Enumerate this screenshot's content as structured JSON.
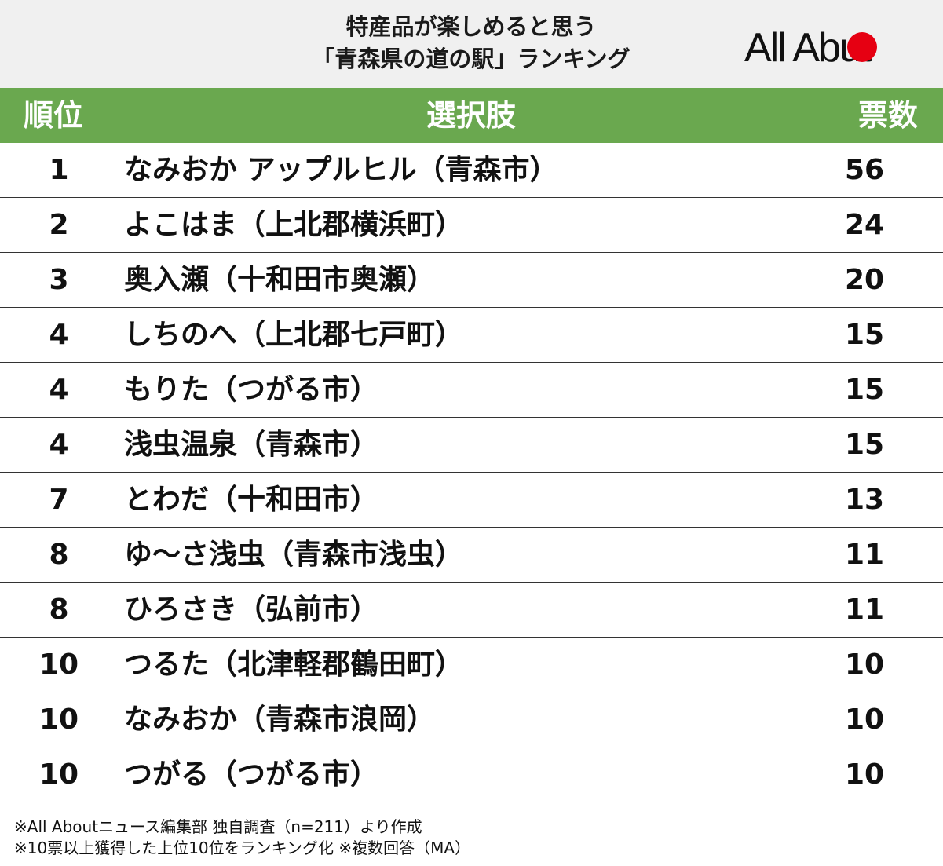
{
  "title": {
    "line1": "特産品が楽しめると思う",
    "line2": "「青森県の道の駅」ランキング"
  },
  "logo": {
    "text_prefix": "All Ab",
    "text_suffix": "ut",
    "dot_color": "#e60012"
  },
  "colors": {
    "header_bg": "#f0f0f0",
    "table_header_bg": "#6aa84f",
    "table_header_text": "#ffffff"
  },
  "table": {
    "headers": {
      "rank": "順位",
      "choice": "選択肢",
      "votes": "票数"
    },
    "rows": [
      {
        "rank": "1",
        "name": "なみおか アップルヒル（青森市）",
        "votes": "56"
      },
      {
        "rank": "2",
        "name": "よこはま（上北郡横浜町）",
        "votes": "24"
      },
      {
        "rank": "3",
        "name": "奥入瀬（十和田市奥瀬）",
        "votes": "20"
      },
      {
        "rank": "4",
        "name": "しちのへ（上北郡七戸町）",
        "votes": "15"
      },
      {
        "rank": "4",
        "name": "もりた（つがる市）",
        "votes": "15"
      },
      {
        "rank": "4",
        "name": "浅虫温泉（青森市）",
        "votes": "15"
      },
      {
        "rank": "7",
        "name": "とわだ（十和田市）",
        "votes": "13"
      },
      {
        "rank": "8",
        "name": "ゆ〜さ浅虫（青森市浅虫）",
        "votes": "11"
      },
      {
        "rank": "8",
        "name": "ひろさき（弘前市）",
        "votes": "11"
      },
      {
        "rank": "10",
        "name": "つるた（北津軽郡鶴田町）",
        "votes": "10"
      },
      {
        "rank": "10",
        "name": "なみおか（青森市浪岡）",
        "votes": "10"
      },
      {
        "rank": "10",
        "name": "つがる（つがる市）",
        "votes": "10"
      }
    ]
  },
  "notes": {
    "line1": "※All Aboutニュース編集部 独自調査（n=211）より作成",
    "line2": "※10票以上獲得した上位10位をランキング化 ※複数回答（MA）"
  }
}
